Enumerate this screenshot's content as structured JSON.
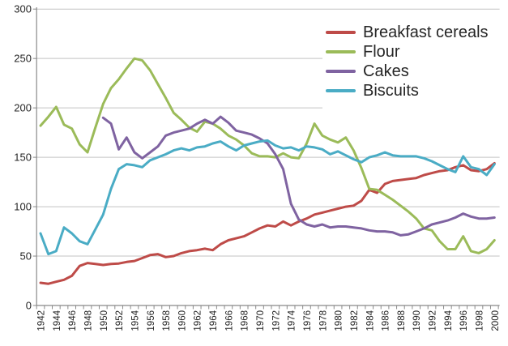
{
  "chart_data": {
    "type": "line",
    "title": "",
    "xlabel": "",
    "ylabel": "",
    "ylim": [
      0,
      300
    ],
    "y_step": 50,
    "grid": "horizontal",
    "legend_position": "top-right",
    "y_tick_labels": [
      "0",
      "50",
      "100",
      "150",
      "200",
      "250",
      "300"
    ],
    "x_tick_labels": [
      "1942",
      "1944",
      "1946",
      "1948",
      "1950",
      "1952",
      "1954",
      "1956",
      "1958",
      "1960",
      "1962",
      "1964",
      "1966",
      "1968",
      "1970",
      "1972",
      "1974",
      "1976",
      "1978",
      "1980",
      "1982",
      "1984",
      "1986",
      "1988",
      "1990",
      "1992",
      "1994",
      "1996",
      "1998",
      "2000"
    ],
    "years": [
      1942,
      1943,
      1944,
      1945,
      1946,
      1947,
      1948,
      1949,
      1950,
      1951,
      1952,
      1953,
      1954,
      1955,
      1956,
      1957,
      1958,
      1959,
      1960,
      1961,
      1962,
      1963,
      1964,
      1965,
      1966,
      1967,
      1968,
      1969,
      1970,
      1971,
      1972,
      1973,
      1974,
      1975,
      1976,
      1977,
      1978,
      1979,
      1980,
      1981,
      1982,
      1983,
      1984,
      1985,
      1986,
      1987,
      1988,
      1989,
      1990,
      1991,
      1992,
      1993,
      1994,
      1995,
      1996,
      1997,
      1998,
      1999,
      2000
    ],
    "series": [
      {
        "name": "Breakfast cereals",
        "color": "#BE4B48",
        "values": [
          23,
          22,
          24,
          26,
          30,
          40,
          43,
          42,
          41,
          42,
          42.5,
          44,
          45,
          48,
          51,
          52,
          49,
          50,
          53,
          55,
          56,
          57.5,
          56,
          62,
          66,
          68,
          70,
          74,
          78,
          81,
          80,
          85,
          81,
          85,
          88,
          92,
          94,
          96,
          98,
          100,
          101,
          106,
          117,
          114,
          123,
          126,
          127,
          128,
          129,
          132,
          134,
          136,
          137,
          140,
          142,
          137,
          136,
          138,
          144
        ]
      },
      {
        "name": "Flour",
        "color": "#9BBB59",
        "values": [
          182,
          191,
          201,
          183,
          179,
          163,
          155,
          180,
          204,
          220,
          229,
          240,
          250,
          248,
          238,
          224,
          210,
          195,
          188,
          180,
          176,
          186,
          184,
          179,
          172,
          168,
          162,
          154,
          151,
          151,
          150,
          154,
          150,
          149,
          164,
          184,
          172,
          168,
          165,
          170,
          157,
          139,
          118,
          117,
          112,
          107,
          101,
          95,
          88,
          78,
          76,
          65,
          57,
          57,
          70,
          55,
          53,
          57,
          66
        ]
      },
      {
        "name": "Cakes",
        "color": "#7F63A1",
        "values": [
          null,
          null,
          null,
          null,
          null,
          null,
          null,
          null,
          190,
          184,
          158,
          170,
          155,
          149,
          155,
          161,
          172,
          175,
          177,
          179,
          184,
          188,
          184,
          191,
          185,
          177,
          175,
          173,
          169,
          164,
          153,
          138,
          103,
          87,
          82,
          80,
          82,
          79,
          80,
          80,
          79,
          78,
          76,
          75,
          75,
          74,
          71,
          72,
          75,
          78,
          82,
          84,
          86,
          89,
          93,
          90,
          88,
          88,
          89
        ]
      },
      {
        "name": "Biscuits",
        "color": "#4AACC5",
        "values": [
          73,
          52,
          55,
          79,
          73,
          65,
          62,
          77,
          92,
          118,
          138,
          143,
          142,
          140,
          147,
          150,
          153,
          157,
          159,
          157,
          160,
          161,
          164,
          166,
          161,
          157,
          162,
          164,
          166,
          167,
          162,
          159,
          160,
          157,
          161,
          160,
          158,
          153,
          156,
          152,
          148,
          145,
          150,
          152,
          155,
          152,
          151,
          151,
          151,
          149,
          146,
          142,
          138,
          135,
          151,
          140,
          138,
          132,
          143
        ]
      }
    ]
  },
  "legend": {
    "items": [
      {
        "label": "Breakfast cereals"
      },
      {
        "label": "Flour"
      },
      {
        "label": "Cakes"
      },
      {
        "label": "Biscuits"
      }
    ]
  },
  "style": {
    "gridline_color": "#C3C3C3",
    "axis_color": "#898989",
    "tick_label_color": "#262626"
  }
}
